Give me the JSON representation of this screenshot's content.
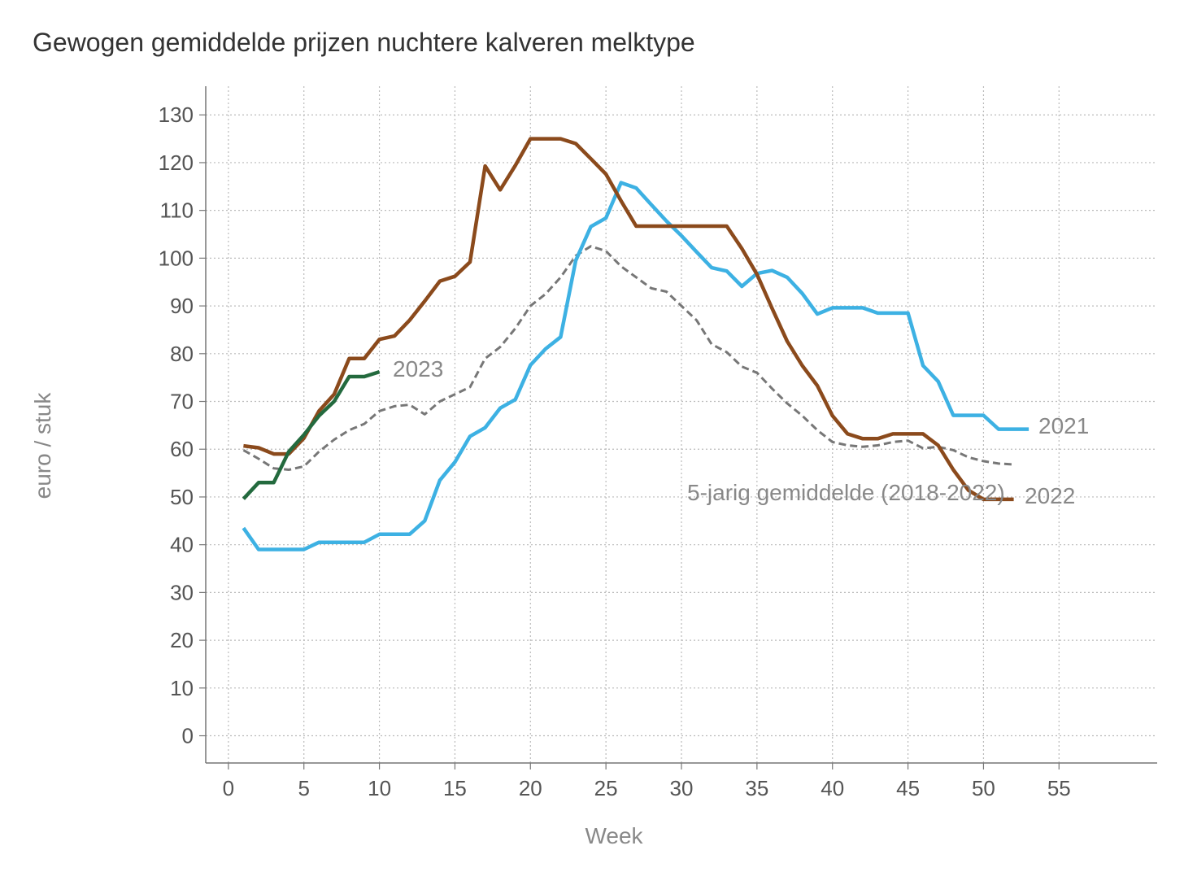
{
  "chart_data": {
    "type": "line",
    "title": "Gewogen gemiddelde prijzen nuchtere kalveren melktype",
    "xlabel": "Week",
    "ylabel": "euro / stuk",
    "xlim": [
      -1.5,
      61.5
    ],
    "ylim": [
      -5.7,
      136
    ],
    "xticks": [
      0,
      5,
      10,
      15,
      20,
      25,
      30,
      35,
      40,
      45,
      50,
      55
    ],
    "yticks": [
      0,
      10,
      20,
      30,
      40,
      50,
      60,
      70,
      80,
      90,
      100,
      110,
      120,
      130
    ],
    "grid": true,
    "series": [
      {
        "name": "2021",
        "color": "#3db1e3",
        "dash": false,
        "x": [
          1,
          2,
          3,
          4,
          5,
          6,
          7,
          8,
          9,
          10,
          11,
          12,
          13,
          14,
          15,
          16,
          17,
          18,
          19,
          20,
          21,
          22,
          23,
          24,
          25,
          26,
          27,
          28,
          29,
          30,
          31,
          32,
          33,
          34,
          35,
          36,
          37,
          38,
          39,
          40,
          41,
          42,
          43,
          44,
          45,
          46,
          47,
          48,
          49,
          50,
          51,
          52,
          53
        ],
        "y": [
          43.5,
          39,
          39,
          39,
          39,
          40.5,
          40.5,
          40.5,
          40.5,
          42.2,
          42.2,
          42.2,
          45,
          53.5,
          57.3,
          62.7,
          64.5,
          68.6,
          70.4,
          77.6,
          81,
          83.5,
          99.5,
          106.6,
          108.4,
          115.8,
          114.7,
          111.2,
          107.8,
          104.7,
          101.3,
          98,
          97.3,
          94.1,
          96.8,
          97.4,
          96,
          92.6,
          88.3,
          89.6,
          89.6,
          89.6,
          88.5,
          88.5,
          88.5,
          77.5,
          74.2,
          67.1,
          67.1,
          67.1,
          64.2,
          64.2,
          64.2
        ]
      },
      {
        "name": "2022",
        "color": "#8b4a1c",
        "dash": false,
        "x": [
          1,
          2,
          3,
          4,
          5,
          6,
          7,
          8,
          9,
          10,
          11,
          12,
          13,
          14,
          15,
          16,
          17,
          18,
          19,
          20,
          21,
          22,
          23,
          24,
          25,
          26,
          27,
          28,
          29,
          30,
          31,
          32,
          33,
          34,
          35,
          36,
          37,
          38,
          39,
          40,
          41,
          42,
          43,
          44,
          45,
          46,
          47,
          48,
          49,
          50,
          51,
          52
        ],
        "y": [
          60.7,
          60.3,
          59,
          59,
          62.3,
          68,
          71.5,
          79,
          79,
          83,
          83.7,
          87,
          91,
          95.2,
          96.2,
          99.2,
          119.3,
          114.3,
          119.4,
          125,
          125,
          125,
          124,
          120.8,
          117.6,
          112,
          106.7,
          106.7,
          106.7,
          106.7,
          106.7,
          106.7,
          106.7,
          102,
          96.6,
          89.5,
          82.6,
          77.5,
          73.3,
          67,
          63.2,
          62.2,
          62.2,
          63.2,
          63.2,
          63.2,
          60.8,
          55.7,
          51.4,
          49.5,
          49.5,
          49.5
        ]
      },
      {
        "name": "2023",
        "color": "#236a3e",
        "dash": false,
        "x": [
          1,
          2,
          3,
          4,
          5,
          6,
          7,
          8,
          9,
          10
        ],
        "y": [
          49.6,
          53,
          53,
          59.5,
          63,
          67,
          70,
          75.2,
          75.2,
          76.2
        ]
      },
      {
        "name": "5-jarig gemiddelde (2018-2022)",
        "color": "#777777",
        "dash": true,
        "x": [
          1,
          2,
          3,
          4,
          5,
          6,
          7,
          8,
          9,
          10,
          11,
          12,
          13,
          14,
          15,
          16,
          17,
          18,
          19,
          20,
          21,
          22,
          23,
          24,
          25,
          26,
          27,
          28,
          29,
          30,
          31,
          32,
          33,
          34,
          35,
          36,
          37,
          38,
          39,
          40,
          41,
          42,
          43,
          44,
          45,
          46,
          47,
          48,
          49,
          50,
          51,
          52
        ],
        "y": [
          59.8,
          58,
          56,
          55.7,
          56.4,
          59.5,
          62,
          64,
          65.3,
          68,
          69,
          69.3,
          67.3,
          70,
          71.5,
          73,
          79,
          81.4,
          85.3,
          90,
          92.5,
          96,
          100.5,
          102.5,
          101.5,
          98.3,
          96,
          93.7,
          93,
          90,
          87,
          82,
          80.3,
          77.3,
          76,
          72.7,
          69.6,
          67,
          64,
          61.5,
          60.8,
          60.5,
          60.8,
          61.5,
          61.8,
          60.2,
          60.5,
          59.8,
          58.3,
          57.5,
          57,
          56.8
        ]
      }
    ],
    "labels": {
      "s2023": "2023",
      "s2021": "2021",
      "s2022": "2022",
      "avg": "5-jarig gemiddelde (2018-2022)"
    }
  }
}
